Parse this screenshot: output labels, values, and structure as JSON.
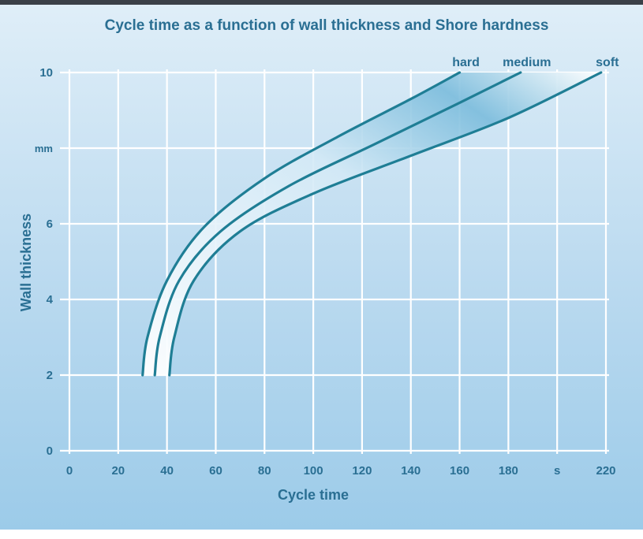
{
  "chart_data": {
    "type": "line",
    "title": "Cycle time as a function of wall thickness and Shore hardness",
    "xlabel": "Cycle time",
    "ylabel": "Wall thickness",
    "xlim": [
      0,
      220
    ],
    "ylim": [
      0,
      10
    ],
    "x_ticks": [
      "0",
      "20",
      "40",
      "60",
      "80",
      "100",
      "120",
      "140",
      "160",
      "180",
      "s",
      "220"
    ],
    "y_ticks": [
      "10",
      "mm",
      "6",
      "4",
      "2",
      "0"
    ],
    "grid": true,
    "series": [
      {
        "name": "hard",
        "x": [
          30,
          32,
          40,
          55,
          80,
          110,
          140,
          160
        ],
        "y": [
          2,
          3,
          4.5,
          5.9,
          7.2,
          8.3,
          9.3,
          10
        ]
      },
      {
        "name": "medium",
        "x": [
          35,
          37,
          45,
          62,
          90,
          125,
          160,
          185
        ],
        "y": [
          2,
          3,
          4.5,
          5.8,
          7.0,
          8.1,
          9.2,
          10
        ]
      },
      {
        "name": "soft",
        "x": [
          41,
          43,
          51,
          70,
          100,
          140,
          180,
          218
        ],
        "y": [
          2,
          3,
          4.5,
          5.8,
          6.8,
          7.8,
          8.8,
          10
        ]
      }
    ],
    "colors": {
      "curve": "#1f7e95",
      "text": "#2a6f93",
      "band": "#ffffff"
    }
  }
}
